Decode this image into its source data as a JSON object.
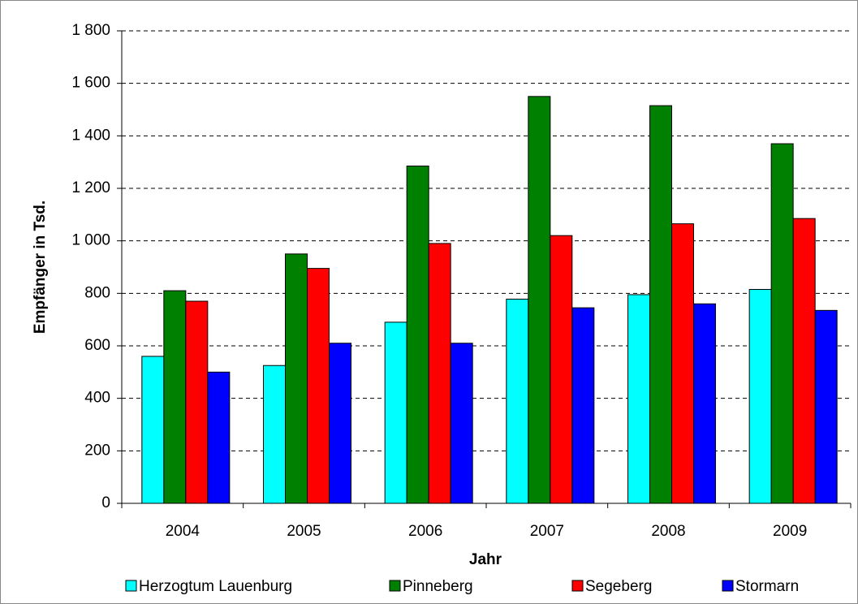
{
  "chart_data": {
    "type": "bar",
    "categories": [
      "2004",
      "2005",
      "2006",
      "2007",
      "2008",
      "2009"
    ],
    "series": [
      {
        "name": "Herzogtum Lauenburg",
        "color": "#00ffff",
        "values": [
          560,
          525,
          690,
          778,
          795,
          815
        ]
      },
      {
        "name": "Pinneberg",
        "color": "#008000",
        "values": [
          810,
          950,
          1285,
          1550,
          1515,
          1370
        ]
      },
      {
        "name": "Segeberg",
        "color": "#ff0000",
        "values": [
          770,
          895,
          990,
          1020,
          1065,
          1085
        ]
      },
      {
        "name": "Stormarn",
        "color": "#0000ff",
        "values": [
          500,
          610,
          610,
          745,
          760,
          735
        ]
      }
    ],
    "x_label": "Jahr",
    "y_label": "Empfänger in Tsd.",
    "ylim": [
      0,
      1800
    ],
    "yticks": [
      0,
      200,
      400,
      600,
      800,
      {
        "value": 1000,
        "label": "1 000"
      },
      {
        "value": 1200,
        "label": "1 200"
      },
      {
        "value": 1400,
        "label": "1 400"
      },
      {
        "value": 1600,
        "label": "1 600"
      },
      {
        "value": 1800,
        "label": "1 800"
      }
    ],
    "grid": true,
    "legend": "bottom"
  }
}
